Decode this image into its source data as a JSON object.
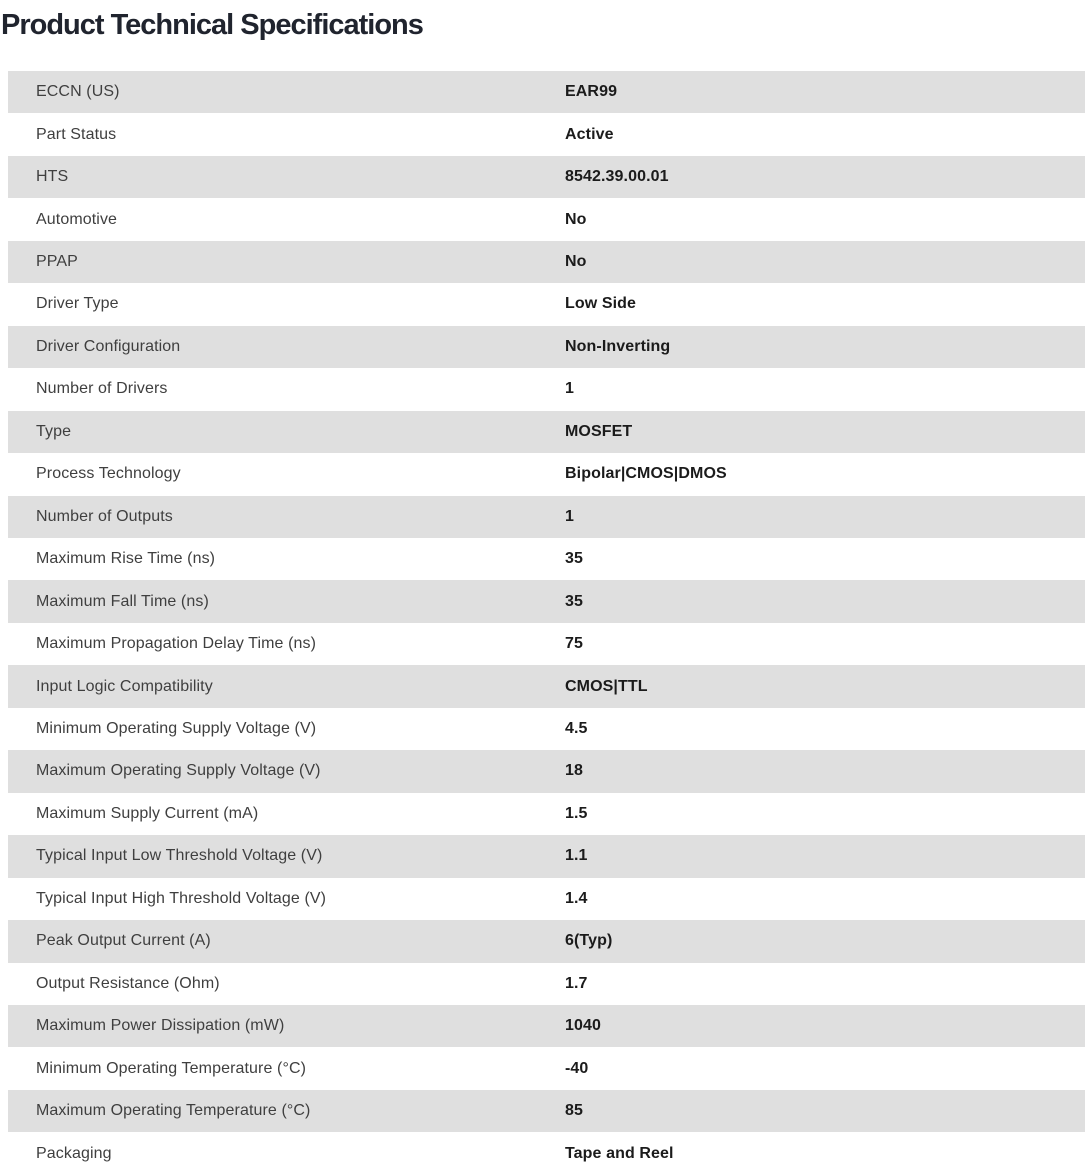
{
  "page": {
    "title": "Product Technical Specifications"
  },
  "colors": {
    "stripe_bg": "#dfdfdf",
    "row_bg": "#ffffff",
    "label_text": "#3f3f3f",
    "value_text": "#1b1b1b",
    "title_text": "#20242e"
  },
  "table": {
    "rows": [
      {
        "label": "ECCN (US)",
        "value": "EAR99"
      },
      {
        "label": "Part Status",
        "value": "Active"
      },
      {
        "label": "HTS",
        "value": "8542.39.00.01"
      },
      {
        "label": "Automotive",
        "value": "No"
      },
      {
        "label": "PPAP",
        "value": "No"
      },
      {
        "label": "Driver Type",
        "value": "Low Side"
      },
      {
        "label": "Driver Configuration",
        "value": "Non-Inverting"
      },
      {
        "label": "Number of Drivers",
        "value": "1"
      },
      {
        "label": "Type",
        "value": "MOSFET"
      },
      {
        "label": "Process Technology",
        "value": "Bipolar|CMOS|DMOS"
      },
      {
        "label": "Number of Outputs",
        "value": "1"
      },
      {
        "label": "Maximum Rise Time (ns)",
        "value": "35"
      },
      {
        "label": "Maximum Fall Time (ns)",
        "value": "35"
      },
      {
        "label": "Maximum Propagation Delay Time (ns)",
        "value": "75"
      },
      {
        "label": "Input Logic Compatibility",
        "value": "CMOS|TTL"
      },
      {
        "label": "Minimum Operating Supply Voltage (V)",
        "value": "4.5"
      },
      {
        "label": "Maximum Operating Supply Voltage (V)",
        "value": "18"
      },
      {
        "label": "Maximum Supply Current (mA)",
        "value": "1.5"
      },
      {
        "label": "Typical Input Low Threshold Voltage (V)",
        "value": "1.1"
      },
      {
        "label": "Typical Input High Threshold Voltage (V)",
        "value": "1.4"
      },
      {
        "label": "Peak Output Current (A)",
        "value": "6(Typ)"
      },
      {
        "label": "Output Resistance (Ohm)",
        "value": "1.7"
      },
      {
        "label": "Maximum Power Dissipation (mW)",
        "value": "1040"
      },
      {
        "label": "Minimum Operating Temperature (°C)",
        "value": "-40"
      },
      {
        "label": "Maximum Operating Temperature (°C)",
        "value": "85"
      },
      {
        "label": "Packaging",
        "value": "Tape and Reel"
      }
    ]
  }
}
